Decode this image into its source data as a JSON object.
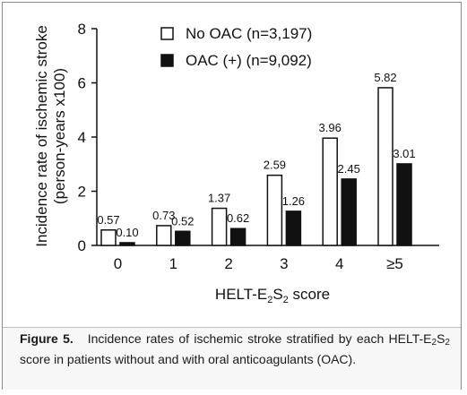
{
  "chart_data": {
    "type": "bar",
    "categories": [
      "0",
      "1",
      "2",
      "3",
      "4",
      "≥5"
    ],
    "series": [
      {
        "name": "No OAC (n=3,197)",
        "values": [
          0.57,
          0.73,
          1.37,
          2.59,
          3.96,
          5.82
        ],
        "labels": [
          "0.57",
          "0.73",
          "1.37",
          "2.59",
          "3.96",
          "5.82"
        ],
        "color": "#ffffff"
      },
      {
        "name": "OAC (+) (n=9,092)",
        "values": [
          0.1,
          0.52,
          0.62,
          1.26,
          2.45,
          3.01
        ],
        "labels": [
          "0.10",
          "0.52",
          "0.62",
          "1.26",
          "2.45",
          "3.01"
        ],
        "color": "#111111"
      }
    ],
    "ylabel_line1": "Incidence rate of ischemic stroke",
    "ylabel_line2": "(person-years x100)",
    "xlabel_prefix": "HELT-E",
    "xlabel_sub1": "2",
    "xlabel_mid": "S",
    "xlabel_sub2": "2",
    "xlabel_suffix": " score",
    "ylim": [
      0,
      8
    ],
    "yticks": [
      0,
      2,
      4,
      6,
      8
    ],
    "legend_position": "top",
    "grid": false
  },
  "caption": {
    "figure_label": "Figure 5.",
    "text_part1": "Incidence rates of ischemic stroke stratified by each HELT-E",
    "sub1": "2",
    "text_part2": "S",
    "sub2": "2",
    "text_part3": " score in patients without and with oral anticoagulants (OAC)."
  }
}
